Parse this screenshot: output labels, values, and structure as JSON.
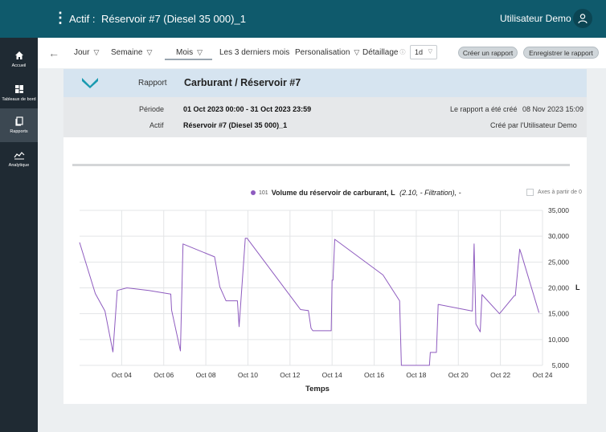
{
  "topbar": {
    "menu_icon": "kebab-menu-icon",
    "asset_label": "Actif :",
    "asset_name": "Réservoir #7 (Diesel 35 000)_1",
    "user_name": "Utilisateur Demo",
    "avatar_icon": "user-icon",
    "color": "#0f5a6c"
  },
  "sidebar": {
    "items": [
      {
        "label": "Accueil",
        "icon": "home-icon"
      },
      {
        "label": "Tableaux de bord",
        "icon": "dashboard-icon"
      },
      {
        "label": "Rapports",
        "icon": "reports-icon"
      },
      {
        "label": "Analytique",
        "icon": "analytics-icon"
      }
    ],
    "active": "Rapports"
  },
  "navbar": {
    "back_icon": "arrow-left-icon",
    "tabs": [
      {
        "label": "Jour",
        "dropdown": true
      },
      {
        "label": "Semaine",
        "dropdown": true
      },
      {
        "label": "Mois",
        "dropdown": true
      },
      {
        "label": "Les 3 derniers mois",
        "dropdown": false
      },
      {
        "label": "Personalisation",
        "dropdown": true
      }
    ],
    "active_tab": "Mois",
    "detail_label": "Détaillage",
    "detail_value": "1d",
    "create_report": "Créer un rapport",
    "save_report": "Enregistrer le rapport"
  },
  "report": {
    "type_label": "Rapport",
    "title": "Carburant / Réservoir #7",
    "period_label": "Période",
    "period_value": "01 Oct 2023 00:00 - 31 Oct 2023 23:59",
    "asset_label": "Actif",
    "asset_value": "Réservoir #7 (Diesel 35 000)_1",
    "created_label": "Le rapport a été créé",
    "created_date": "08 Nov 2023 15:09",
    "created_by": "Créé par l'Utilisateur Demo",
    "accent_color": "#1a9ab0"
  },
  "legend": {
    "series_id": "101",
    "series_name": "Volume du réservoir de carburant, L",
    "series_detail": "(2.10, - Filtration), -",
    "axis_checkbox_label": "Axes à partir de 0"
  },
  "chart_data": {
    "type": "line",
    "xlabel": "Temps",
    "ylabel": "L",
    "ylim": [
      5000,
      35000
    ],
    "yticks": [
      5000,
      10000,
      15000,
      20000,
      25000,
      30000,
      35000
    ],
    "ytick_labels": [
      "5,000",
      "10,000",
      "15,000",
      "20,000",
      "25,000",
      "30,000",
      "35,000"
    ],
    "xlim": [
      "2023-10-02",
      "2023-10-24"
    ],
    "xticks": [
      "2023-10-04",
      "2023-10-06",
      "2023-10-08",
      "2023-10-10",
      "2023-10-12",
      "2023-10-14",
      "2023-10-16",
      "2023-10-18",
      "2023-10-20",
      "2023-10-22",
      "2023-10-24"
    ],
    "xtick_labels": [
      "Oct 04",
      "Oct 06",
      "Oct 08",
      "Oct 10",
      "Oct 12",
      "Oct 14",
      "Oct 16",
      "Oct 18",
      "Oct 20",
      "Oct 22",
      "Oct 24"
    ],
    "grid": true,
    "legend_position": "top",
    "line_color": "#8e5bbf",
    "series": [
      {
        "x": [
          "2023-10-02 00:00",
          "2023-10-02 18:00",
          "2023-10-03 05:00",
          "2023-10-03 14:00",
          "2023-10-03 19:00",
          "2023-10-04 06:00",
          "2023-10-05 07:00",
          "2023-10-06 08:00",
          "2023-10-06 09:00",
          "2023-10-06 19:00",
          "2023-10-06 22:00",
          "2023-10-08 10:00",
          "2023-10-08 16:00",
          "2023-10-08 23:00",
          "2023-10-09 12:00",
          "2023-10-09 14:00",
          "2023-10-09 21:00",
          "2023-10-09 23:00",
          "2023-10-12 12:00",
          "2023-10-12 21:00",
          "2023-10-13 00:00",
          "2023-10-13 02:00",
          "2023-10-13 23:00",
          "2023-10-14 00:00",
          "2023-10-14 01:00",
          "2023-10-14 03:00",
          "2023-10-16 10:00",
          "2023-10-17 05:00",
          "2023-10-17 07:00",
          "2023-10-18 15:00",
          "2023-10-18 16:00",
          "2023-10-18 23:00",
          "2023-10-19 01:00",
          "2023-10-20 16:00",
          "2023-10-20 18:00",
          "2023-10-20 20:00",
          "2023-10-21 01:00",
          "2023-10-21 03:00",
          "2023-10-21 23:00",
          "2023-10-22 16:00",
          "2023-10-22 17:00",
          "2023-10-22 22:00",
          "2023-10-23 00:00",
          "2023-10-23 20:00"
        ],
        "y": [
          28800,
          18900,
          15500,
          7600,
          19500,
          20000,
          19500,
          18800,
          15700,
          7800,
          28500,
          26000,
          20200,
          17500,
          17500,
          12500,
          29600,
          29600,
          15800,
          15600,
          12200,
          11700,
          11700,
          21500,
          21500,
          29400,
          22500,
          17500,
          5000,
          5000,
          7500,
          7500,
          16800,
          15500,
          28500,
          13000,
          11500,
          18700,
          15000,
          18500,
          18500,
          27500,
          26500,
          15200
        ]
      }
    ]
  }
}
